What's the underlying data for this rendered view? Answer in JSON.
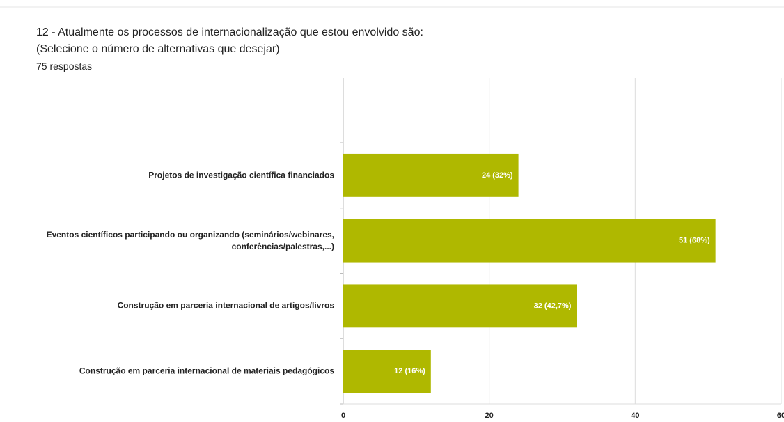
{
  "chart_data": {
    "type": "bar",
    "orientation": "horizontal",
    "title": "12 - Atualmente os processos de internacionalização que estou envolvido são:",
    "subtitle": "(Selecione o número de alternativas que desejar)",
    "responses": "75 respostas",
    "categories": [
      "Projetos de investigação científica financiados",
      "Eventos científicos participando ou organizando (seminários/webinares,\nconferências/palestras,...)",
      "Construção em parceria internacional de artigos/livros",
      "Construção em parceria internacional de materiais pedagógicos"
    ],
    "values": [
      24,
      51,
      32,
      12
    ],
    "value_labels": [
      "24 (32%)",
      "51 (68%)",
      "32 (42,7%)",
      "12 (16%)"
    ],
    "color": "#afb800",
    "xlim": [
      0,
      60
    ],
    "xticks": [
      0,
      20,
      40,
      60
    ],
    "grid": true
  }
}
